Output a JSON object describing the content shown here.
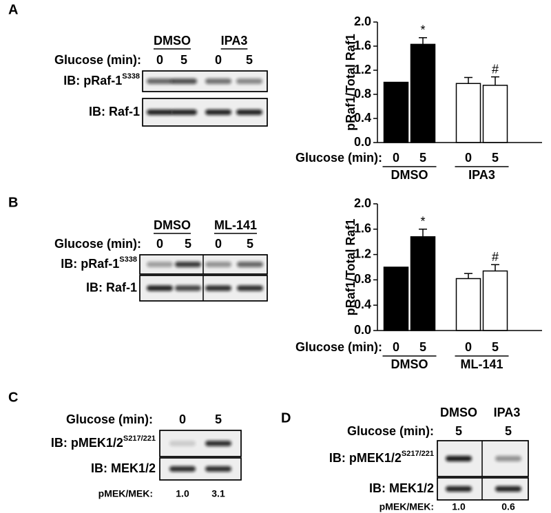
{
  "panel_letters": [
    "A",
    "B",
    "C",
    "D"
  ],
  "blots": [
    {
      "treatments": [
        "DMSO",
        "IPA3"
      ],
      "glucose_label": "Glucose (min):",
      "times": [
        "0",
        "5",
        "0",
        "5"
      ],
      "rows": [
        {
          "label": "IB: pRaf-1",
          "superscript": "S338"
        },
        {
          "label": "IB: Raf-1"
        }
      ]
    },
    {
      "treatments": [
        "DMSO",
        "ML-141"
      ],
      "glucose_label": "Glucose (min):",
      "times": [
        "0",
        "5",
        "0",
        "5"
      ],
      "rows": [
        {
          "label": "IB: pRaf-1",
          "superscript": "S338"
        },
        {
          "label": "IB: Raf-1"
        }
      ]
    },
    {
      "glucose_label": "Glucose (min):",
      "times": [
        "0",
        "5"
      ],
      "rows": [
        {
          "label": "IB: pMEK1/2",
          "superscript": "S217/221"
        },
        {
          "label": "IB: MEK1/2"
        }
      ],
      "ratio_label": "pMEK/MEK:",
      "ratios": [
        "1.0",
        "3.1"
      ]
    },
    {
      "treatments": [
        "DMSO",
        "IPA3"
      ],
      "glucose_label": "Glucose (min):",
      "times": [
        "5",
        "5"
      ],
      "rows": [
        {
          "label": "IB: pMEK1/2",
          "superscript": "S217/221"
        },
        {
          "label": "IB: MEK1/2"
        }
      ],
      "ratio_label": "pMEK/MEK:",
      "ratios": [
        "1.0",
        "0.6"
      ]
    }
  ],
  "chart_data": [
    {
      "type": "bar",
      "ylabel": "pRaf1/Total Raf1",
      "xlabel": "Glucose (min):",
      "categories": [
        "0",
        "5",
        "0",
        "5"
      ],
      "groups": [
        "DMSO",
        "IPA3"
      ],
      "values": [
        1.0,
        1.63,
        0.98,
        0.95
      ],
      "errors": [
        null,
        0.11,
        0.1,
        0.14
      ],
      "colors": [
        "#000000",
        "#000000",
        "#ffffff",
        "#ffffff"
      ],
      "bar_labels": [
        null,
        "*",
        null,
        "#"
      ],
      "ylim": [
        0,
        2.0
      ],
      "yticks": [
        {
          "value": 0,
          "label": "0.0"
        },
        {
          "value": 0.4,
          "label": "0.4"
        },
        {
          "value": 0.8,
          "label": "0.8"
        },
        {
          "value": 1.2,
          "label": "1.2"
        },
        {
          "value": 1.6,
          "label": "1.6"
        },
        {
          "value": 2.0,
          "label": "2.0"
        }
      ]
    },
    {
      "type": "bar",
      "ylabel": "pRaf1/Total Raf1",
      "xlabel": "Glucose (min):",
      "categories": [
        "0",
        "5",
        "0",
        "5"
      ],
      "groups": [
        "DMSO",
        "ML-141"
      ],
      "values": [
        1.0,
        1.48,
        0.82,
        0.94
      ],
      "errors": [
        null,
        0.12,
        0.08,
        0.1
      ],
      "colors": [
        "#000000",
        "#000000",
        "#ffffff",
        "#ffffff"
      ],
      "bar_labels": [
        null,
        "*",
        null,
        "#"
      ],
      "ylim": [
        0,
        2.0
      ],
      "yticks": [
        {
          "value": 0,
          "label": "0.0"
        },
        {
          "value": 0.4,
          "label": "0.4"
        },
        {
          "value": 0.8,
          "label": "0.8"
        },
        {
          "value": 1.2,
          "label": "1.2"
        },
        {
          "value": 1.6,
          "label": "1.6"
        },
        {
          "value": 2.0,
          "label": "2.0"
        }
      ]
    }
  ]
}
